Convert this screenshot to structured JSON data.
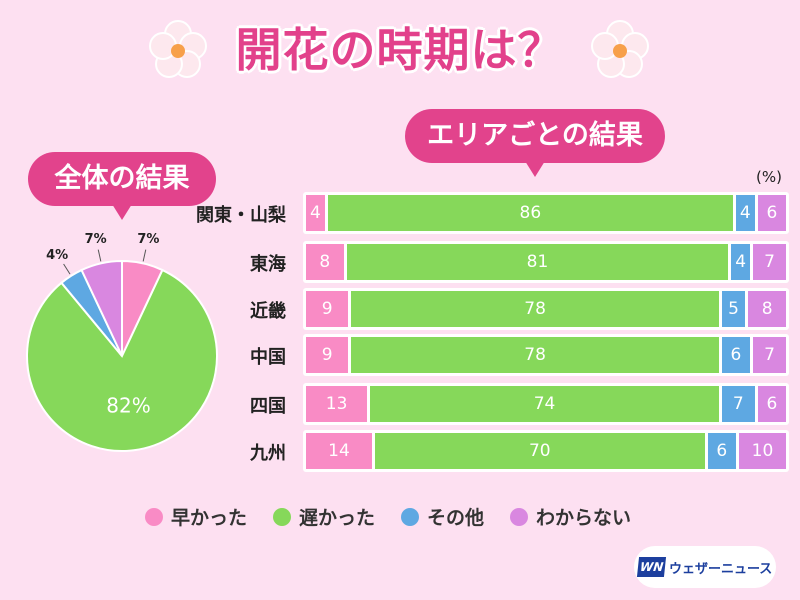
{
  "title": "開花の時期は？",
  "overall_label": "全体の結果",
  "area_label": "エリアごとの結果",
  "unit": "(%)",
  "logo": {
    "mark": "WN",
    "text": "ウェザーニュース"
  },
  "colors": {
    "early": "#f98bc5",
    "late": "#86d85a",
    "other": "#5ea8e2",
    "unknown": "#d987e0",
    "accent": "#e2438c"
  },
  "chart_data": [
    {
      "type": "pie",
      "title": "全体の結果",
      "labels": [
        "早かった",
        "遅かった",
        "その他",
        "わからない"
      ],
      "values": [
        7,
        82,
        4,
        7
      ],
      "value_labels": [
        "7%",
        "82%",
        "4%",
        "7%"
      ]
    },
    {
      "type": "bar",
      "stacked": true,
      "orientation": "horizontal",
      "title": "エリアごとの結果",
      "unit": "(%)",
      "categories": [
        "関東・山梨",
        "東海",
        "近畿",
        "中国",
        "四国",
        "九州"
      ],
      "series": [
        {
          "name": "早かった",
          "values": [
            4,
            8,
            9,
            9,
            13,
            14
          ]
        },
        {
          "name": "遅かった",
          "values": [
            86,
            81,
            78,
            78,
            74,
            70
          ]
        },
        {
          "name": "その他",
          "values": [
            4,
            4,
            5,
            6,
            7,
            6
          ]
        },
        {
          "name": "わからない",
          "values": [
            6,
            7,
            8,
            7,
            6,
            10
          ]
        }
      ]
    }
  ],
  "legend": [
    "早かった",
    "遅かった",
    "その他",
    "わからない"
  ]
}
